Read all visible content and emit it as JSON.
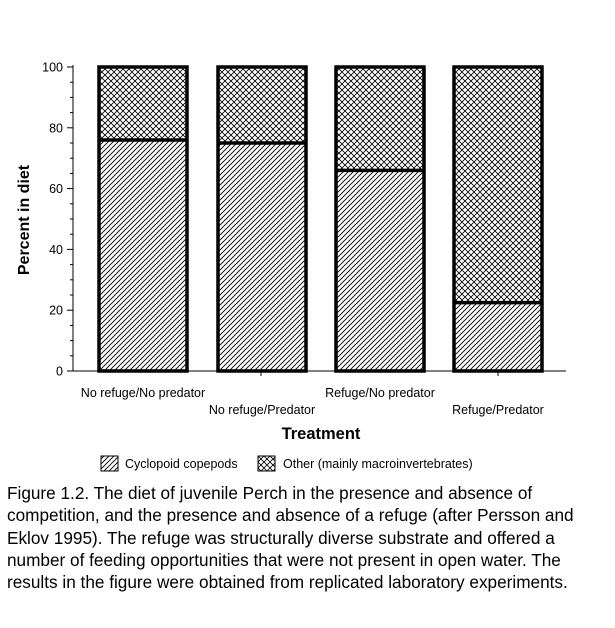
{
  "chart_data": {
    "type": "bar",
    "stacked": true,
    "categories": [
      "No refuge/No predator",
      "No refuge/Predator",
      "Refuge/No predator",
      "Refuge/Predator"
    ],
    "series": [
      {
        "name": "Cyclopoid copepods",
        "values": [
          76,
          75,
          66,
          22.5
        ],
        "pattern": "diagonal-hatch"
      },
      {
        "name": "Other (mainly macroinvertebrates)",
        "values": [
          24,
          25,
          34,
          77.5
        ],
        "pattern": "cross-hatch"
      }
    ],
    "xlabel": "Treatment",
    "ylabel": "Percent in diet",
    "ylim": [
      0,
      100
    ],
    "yticks": [
      0,
      20,
      40,
      60,
      80,
      100
    ],
    "grid": false,
    "legend_placement": "bottom"
  },
  "caption": "Figure 1.2.  The diet of juvenile Perch in the presence and absence of competition, and the presence and absence of a refuge (after Persson and Eklov 1995).  The refuge was structurally diverse substrate and offered a number of feeding opportunities that were not present in open water.  The results in the figure were obtained from replicated laboratory experiments.",
  "colors": {
    "ink": "#000000",
    "background": "#ffffff"
  }
}
